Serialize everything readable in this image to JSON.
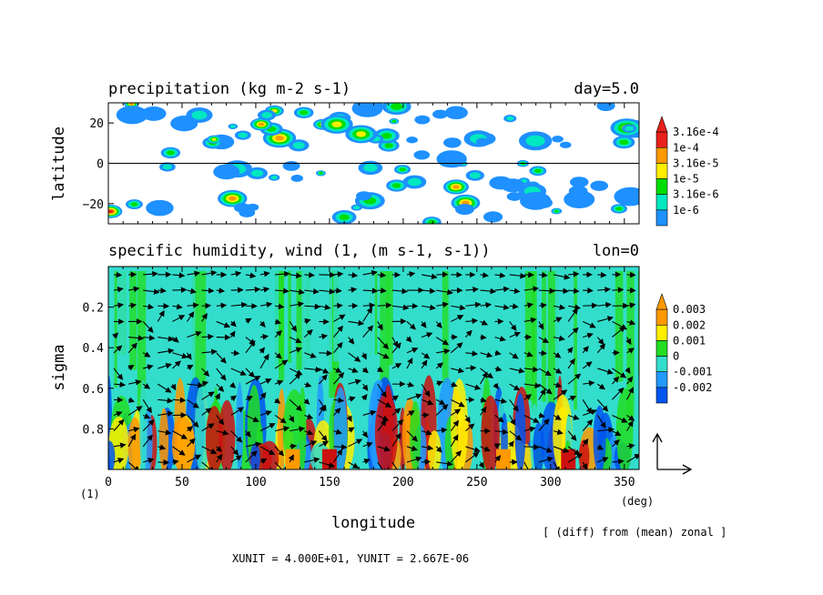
{
  "top_panel": {
    "title": "precipitation (kg m-2 s-1)",
    "right_label": "day=5.0",
    "ylabel": "latitude",
    "colorbar_labels": [
      "3.16e-4",
      "1e-4",
      "3.16e-5",
      "1e-5",
      "3.16e-6",
      "1e-6"
    ]
  },
  "bottom_panel": {
    "title": "specific humidity, wind (1, (m s-1, s-1))",
    "right_label": "lon=0",
    "ylabel": "sigma",
    "xlabel": "longitude",
    "x_unit_label": "(deg)",
    "ref_marker": "(1)",
    "colorbar_labels": [
      "0.003",
      "0.002",
      "0.001",
      "0",
      "-0.001",
      "-0.002"
    ]
  },
  "footer": {
    "diff_note": "[ (diff) from (mean) zonal ]",
    "units_note": "XUNIT = 4.000E+01, YUNIT = 2.667E-06"
  },
  "colors": {
    "precip_scale": [
      "#1e90ff",
      "#00e8c0",
      "#00dd00",
      "#ffee00",
      "#ff9900",
      "#e8201a"
    ],
    "humidity_scale": [
      "#0055ee",
      "#2299ff",
      "#33ddcc",
      "#22dd22",
      "#ffee00",
      "#ff9900",
      "#cc1111"
    ]
  },
  "chart_data": [
    {
      "type": "heatmap",
      "title": "precipitation (kg m-2 s-1)",
      "xlabel": "longitude",
      "ylabel": "latitude",
      "xlim": [
        0,
        360
      ],
      "ylim": [
        -30,
        30
      ],
      "yticks": [
        -20,
        0,
        20
      ],
      "ytick_labels": [
        "−20",
        "0",
        "20"
      ],
      "contour_levels": [
        1e-06,
        3.16e-06,
        1e-05,
        3.16e-05,
        0.0001,
        0.000316
      ],
      "annotation": "day=5.0",
      "reference_line": 0
    },
    {
      "type": "heatmap",
      "title": "specific humidity, wind (1, (m s-1, s-1))",
      "xlabel": "longitude",
      "ylabel": "sigma",
      "xlim": [
        0,
        360
      ],
      "ylim": [
        1.0,
        0.0
      ],
      "xticks": [
        0,
        50,
        100,
        150,
        200,
        250,
        300,
        350
      ],
      "xtick_labels": [
        "0",
        "50",
        "100",
        "150",
        "200",
        "250",
        "300",
        "350"
      ],
      "yticks": [
        0.2,
        0.4,
        0.6,
        0.8
      ],
      "ytick_labels": [
        "0.2",
        "0.4",
        "0.6",
        "0.8"
      ],
      "contour_levels": [
        -0.002,
        -0.001,
        0,
        0.001,
        0.002,
        0.003
      ],
      "vector_field": "wind (m s-1, s-1)",
      "annotation": "lon=0"
    }
  ]
}
